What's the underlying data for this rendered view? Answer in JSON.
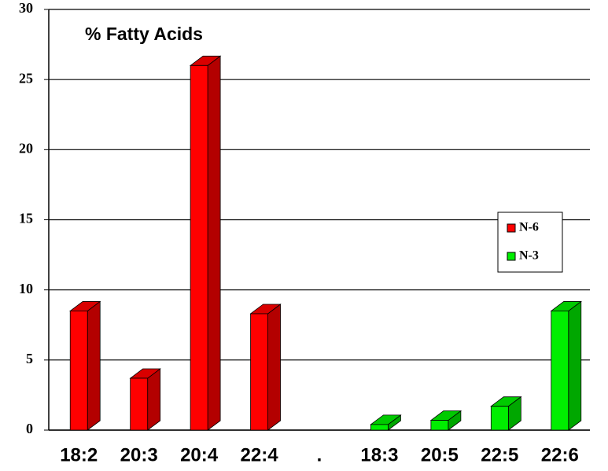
{
  "chart_data": {
    "type": "bar3d",
    "title": "% Fatty Acids",
    "categories": [
      "18:2",
      "20:3",
      "20:4",
      "22:4",
      ".",
      "18:3",
      "20:5",
      "22:5",
      "22:6"
    ],
    "series": [
      {
        "name": "N-6",
        "color": "#ff0000",
        "values": [
          8.5,
          3.7,
          26,
          8.3,
          null,
          null,
          null,
          null,
          null
        ]
      },
      {
        "name": "N-3",
        "color": "#00ee00",
        "values": [
          null,
          null,
          null,
          null,
          null,
          0.4,
          0.7,
          1.7,
          8.5
        ]
      }
    ],
    "ylim": [
      0,
      30
    ],
    "yticks": [
      0,
      5,
      10,
      15,
      20,
      25,
      30
    ],
    "grid": true
  }
}
